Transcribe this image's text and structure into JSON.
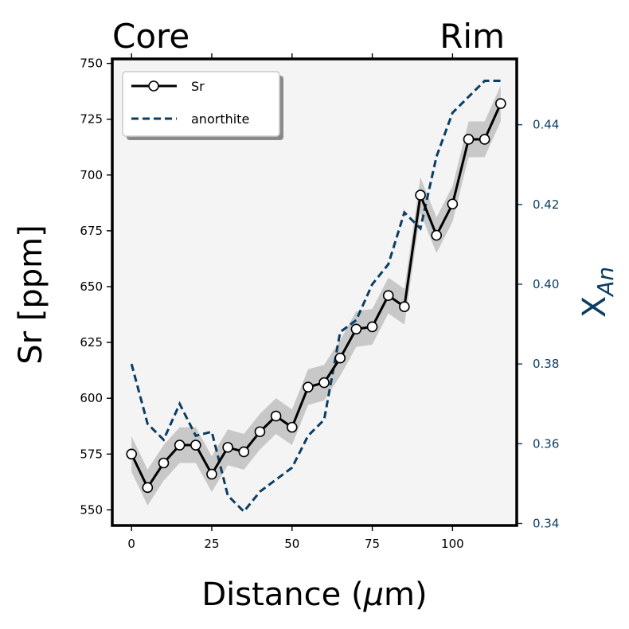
{
  "chart_data": {
    "type": "line",
    "top_labels": {
      "left": "Core",
      "right": "Rim"
    },
    "xlabel": "Distance (",
    "xlabel_unit": "μ",
    "xlabel_tail": "m)",
    "ylabel": "Sr [ppm]",
    "ylabel_right": "X",
    "ylabel_right_sub": "An",
    "xlim": [
      -6,
      120
    ],
    "ylim": [
      543,
      752
    ],
    "ylim_right": [
      0.3395,
      0.4565
    ],
    "x_ticks": [
      "0",
      "25",
      "50",
      "75",
      "100"
    ],
    "y_ticks": [
      "550",
      "575",
      "600",
      "625",
      "650",
      "675",
      "700",
      "725",
      "750"
    ],
    "y_right_ticks": [
      "0.34",
      "0.36",
      "0.38",
      "0.40",
      "0.42",
      "0.44"
    ],
    "legend": {
      "position": "top-left",
      "entries": [
        "Sr",
        "anorthite"
      ]
    },
    "colors": {
      "sr": "#000000",
      "anorthite": "#0b3d62",
      "band": "#c8c8c8",
      "plot_bg": "#f4f4f4"
    },
    "series": [
      {
        "name": "Sr",
        "axis": "left",
        "x": [
          0,
          5,
          10,
          15,
          20,
          25,
          30,
          35,
          40,
          45,
          50,
          55,
          60,
          65,
          70,
          75,
          80,
          85,
          90,
          95,
          100,
          105,
          110,
          115
        ],
        "values": [
          575,
          560,
          571,
          579,
          579,
          566,
          578,
          576,
          585,
          592,
          587,
          605,
          607,
          618,
          631,
          632,
          646,
          641,
          691,
          673,
          687,
          716,
          716,
          732
        ],
        "band": 8
      },
      {
        "name": "anorthite",
        "axis": "right",
        "x": [
          0,
          5,
          10,
          15,
          20,
          25,
          30,
          35,
          40,
          45,
          50,
          55,
          60,
          65,
          70,
          75,
          80,
          85,
          90,
          95,
          100,
          105,
          110,
          115
        ],
        "values": [
          0.38,
          0.365,
          0.361,
          0.37,
          0.362,
          0.363,
          0.347,
          0.343,
          0.348,
          0.351,
          0.354,
          0.362,
          0.366,
          0.388,
          0.391,
          0.4,
          0.405,
          0.418,
          0.414,
          0.432,
          0.443,
          0.447,
          0.451,
          0.451
        ]
      }
    ]
  }
}
